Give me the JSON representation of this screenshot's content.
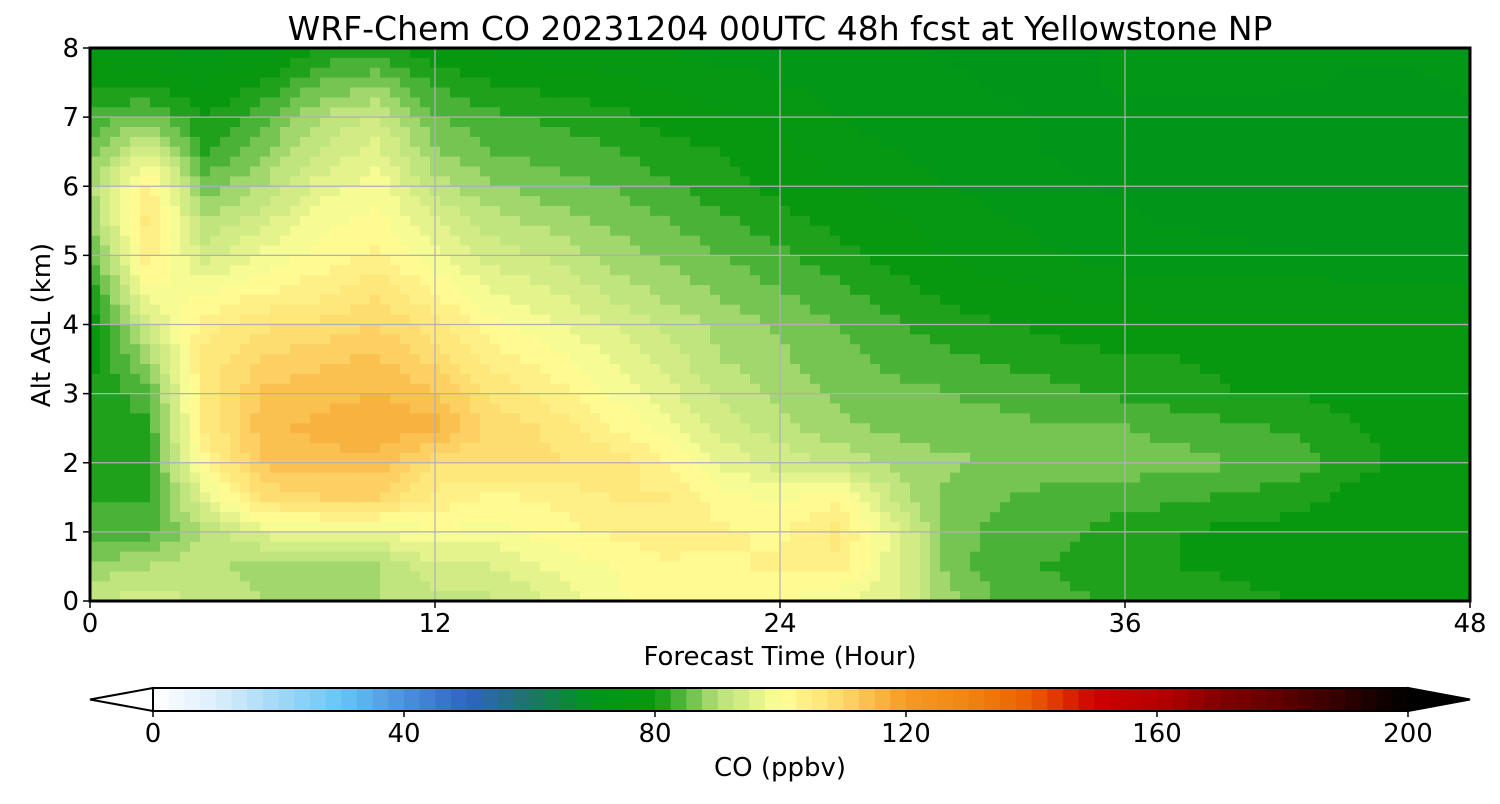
{
  "chart_data": {
    "type": "heatmap",
    "title": "WRF-Chem CO  20231204 00UTC 48h fcst at Yellowstone NP",
    "xlabel": "Forecast Time (Hour)",
    "ylabel": "Alt AGL (km)",
    "xlim": [
      0,
      48
    ],
    "ylim": [
      0,
      8
    ],
    "xticks": [
      0,
      12,
      24,
      36,
      48
    ],
    "yticks": [
      0,
      1,
      2,
      3,
      4,
      5,
      6,
      7,
      8
    ],
    "grid": true,
    "x": [
      0,
      2,
      4,
      6,
      8,
      10,
      12,
      14,
      16,
      18,
      20,
      22,
      24,
      26,
      28,
      30,
      32,
      34,
      36,
      38,
      40,
      42,
      44,
      46,
      48
    ],
    "y": [
      0,
      0.5,
      1,
      1.5,
      2,
      2.5,
      3,
      3.5,
      4,
      4.5,
      5,
      5.5,
      6,
      6.5,
      7,
      7.5,
      8
    ],
    "z": [
      [
        92,
        94,
        92,
        90,
        90,
        90,
        92,
        92,
        95,
        99,
        101,
        101,
        100,
        98,
        95,
        88,
        84,
        83,
        82,
        82,
        81,
        80,
        79,
        79,
        79
      ],
      [
        88,
        90,
        92,
        88,
        88,
        90,
        94,
        95,
        98,
        100,
        102,
        102,
        103,
        104,
        96,
        86,
        83,
        82,
        81,
        80,
        79,
        78,
        78,
        78,
        79
      ],
      [
        84,
        84,
        90,
        96,
        97,
        97,
        100,
        99,
        101,
        103,
        104,
        103,
        102,
        106,
        96,
        86,
        84,
        83,
        81,
        80,
        79,
        79,
        78,
        78,
        78
      ],
      [
        82,
        82,
        96,
        108,
        110,
        110,
        104,
        102,
        103,
        105,
        105,
        101,
        99,
        102,
        92,
        86,
        85,
        84,
        84,
        83,
        82,
        81,
        79,
        78,
        78
      ],
      [
        82,
        82,
        102,
        113,
        114,
        114,
        108,
        108,
        108,
        107,
        103,
        97,
        94,
        92,
        89,
        88,
        87,
        86,
        86,
        86,
        85,
        84,
        81,
        79,
        79
      ],
      [
        81,
        82,
        105,
        114,
        116,
        117,
        116,
        109,
        107,
        103,
        99,
        94,
        91,
        88,
        87,
        86,
        86,
        85,
        85,
        84,
        83,
        82,
        80,
        79,
        79
      ],
      [
        80,
        84,
        106,
        113,
        114,
        115,
        113,
        107,
        104,
        100,
        96,
        92,
        89,
        87,
        86,
        85,
        84,
        83,
        82,
        81,
        80,
        80,
        79,
        79,
        79
      ],
      [
        79,
        88,
        106,
        110,
        112,
        113,
        109,
        104,
        101,
        98,
        94,
        90,
        88,
        86,
        84,
        83,
        82,
        81,
        80,
        80,
        79,
        79,
        79,
        79,
        79
      ],
      [
        78,
        94,
        104,
        107,
        108,
        110,
        106,
        101,
        98,
        95,
        92,
        89,
        87,
        85,
        83,
        81,
        80,
        79,
        79,
        78,
        78,
        78,
        78,
        78,
        78
      ],
      [
        80,
        100,
        99,
        102,
        104,
        107,
        102,
        97,
        95,
        92,
        89,
        87,
        85,
        83,
        81,
        79,
        78,
        77,
        76,
        76,
        76,
        76,
        76,
        76,
        76
      ],
      [
        84,
        104,
        94,
        98,
        101,
        103,
        98,
        94,
        92,
        89,
        87,
        85,
        83,
        81,
        79,
        77,
        76,
        75,
        74,
        74,
        73,
        73,
        72,
        72,
        72
      ],
      [
        88,
        106,
        90,
        94,
        99,
        101,
        95,
        91,
        89,
        87,
        85,
        83,
        81,
        79,
        78,
        76,
        75,
        74,
        73,
        72,
        72,
        71,
        71,
        71,
        72
      ],
      [
        89,
        104,
        86,
        90,
        96,
        99,
        91,
        88,
        86,
        85,
        83,
        81,
        79,
        78,
        76,
        75,
        74,
        73,
        72,
        71,
        71,
        70,
        70,
        70,
        71
      ],
      [
        86,
        95,
        82,
        87,
        93,
        96,
        88,
        85,
        84,
        83,
        81,
        80,
        78,
        76,
        75,
        74,
        73,
        72,
        72,
        71,
        71,
        71,
        70,
        70,
        71
      ],
      [
        83,
        86,
        80,
        84,
        90,
        93,
        85,
        83,
        82,
        81,
        79,
        78,
        77,
        75,
        74,
        73,
        73,
        72,
        72,
        72,
        72,
        71,
        71,
        71,
        72
      ],
      [
        80,
        79,
        77,
        80,
        85,
        87,
        82,
        80,
        79,
        78,
        77,
        76,
        75,
        74,
        73,
        73,
        72,
        72,
        73,
        73,
        73,
        73,
        72,
        72,
        73
      ],
      [
        77,
        75,
        74,
        76,
        80,
        81,
        78,
        77,
        76,
        76,
        75,
        74,
        74,
        73,
        73,
        72,
        72,
        72,
        73,
        73,
        74,
        73,
        73,
        73,
        74
      ]
    ],
    "colorbar": {
      "label": "CO  (ppbv)",
      "ticks": [
        0,
        40,
        80,
        120,
        160,
        200
      ],
      "vmin": 0,
      "vmax": 200,
      "step": 2.5,
      "extend": "both",
      "colors": [
        [
          0,
          "#ffffff"
        ],
        [
          10,
          "#dbeefb"
        ],
        [
          20,
          "#a2d8f7"
        ],
        [
          30,
          "#66c6f6"
        ],
        [
          40,
          "#4c90dc"
        ],
        [
          50,
          "#2f64c3"
        ],
        [
          60,
          "#1e7468"
        ],
        [
          70,
          "#00961c"
        ],
        [
          80,
          "#09980e"
        ],
        [
          90,
          "#b7e07b"
        ],
        [
          100,
          "#ffff96"
        ],
        [
          110,
          "#fdd86b"
        ],
        [
          120,
          "#f59b25"
        ],
        [
          130,
          "#f08511"
        ],
        [
          140,
          "#ea5d01"
        ],
        [
          150,
          "#cf0000"
        ],
        [
          160,
          "#b80000"
        ],
        [
          170,
          "#820000"
        ],
        [
          180,
          "#5d0000"
        ],
        [
          190,
          "#2e0000"
        ],
        [
          200,
          "#000000"
        ]
      ]
    }
  }
}
